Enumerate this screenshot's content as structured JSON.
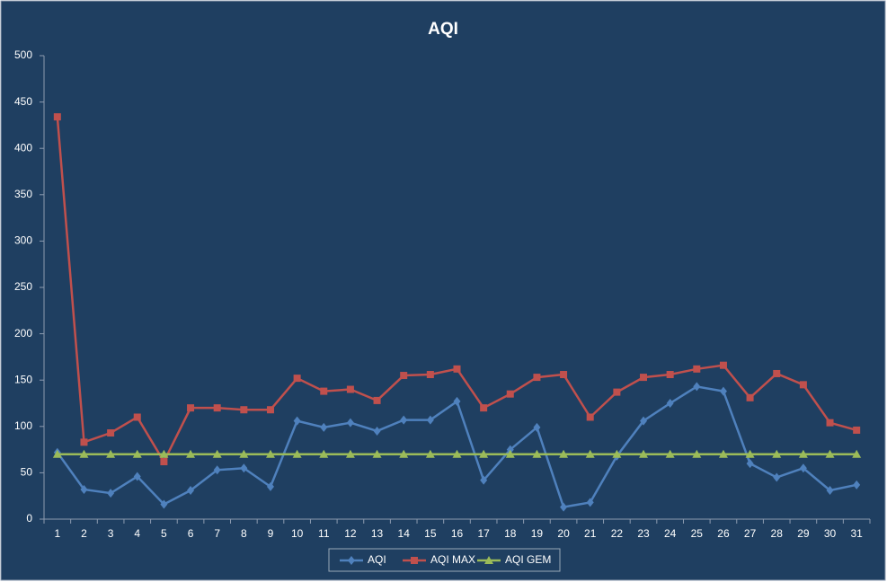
{
  "chart_data": {
    "type": "line",
    "title": "AQI",
    "categories": [
      "1",
      "2",
      "3",
      "4",
      "5",
      "6",
      "7",
      "8",
      "9",
      "10",
      "11",
      "12",
      "13",
      "14",
      "15",
      "16",
      "17",
      "18",
      "19",
      "20",
      "21",
      "22",
      "23",
      "24",
      "25",
      "26",
      "27",
      "28",
      "29",
      "30",
      "31"
    ],
    "series": [
      {
        "name": "AQI",
        "color": "#4f81bd",
        "marker": "diamond",
        "values": [
          72,
          32,
          28,
          46,
          16,
          31,
          53,
          55,
          35,
          106,
          99,
          104,
          95,
          107,
          107,
          127,
          42,
          75,
          99,
          13,
          18,
          68,
          106,
          125,
          143,
          138,
          60,
          45,
          55,
          31,
          37
        ]
      },
      {
        "name": "AQI MAX",
        "color": "#c0504d",
        "marker": "square",
        "values": [
          434,
          83,
          93,
          110,
          62,
          120,
          120,
          118,
          118,
          152,
          138,
          140,
          128,
          155,
          156,
          162,
          120,
          135,
          153,
          156,
          110,
          137,
          153,
          156,
          162,
          166,
          131,
          157,
          145,
          104,
          96
        ]
      },
      {
        "name": "AQI GEM",
        "color": "#9bbb59",
        "marker": "triangle",
        "values": [
          70,
          70,
          70,
          70,
          70,
          70,
          70,
          70,
          70,
          70,
          70,
          70,
          70,
          70,
          70,
          70,
          70,
          70,
          70,
          70,
          70,
          70,
          70,
          70,
          70,
          70,
          70,
          70,
          70,
          70,
          70
        ]
      }
    ],
    "ylim": [
      0,
      500
    ],
    "yticks": [
      0,
      50,
      100,
      150,
      200,
      250,
      300,
      350,
      400,
      450,
      500
    ],
    "grid": false,
    "legend": "bottom"
  }
}
